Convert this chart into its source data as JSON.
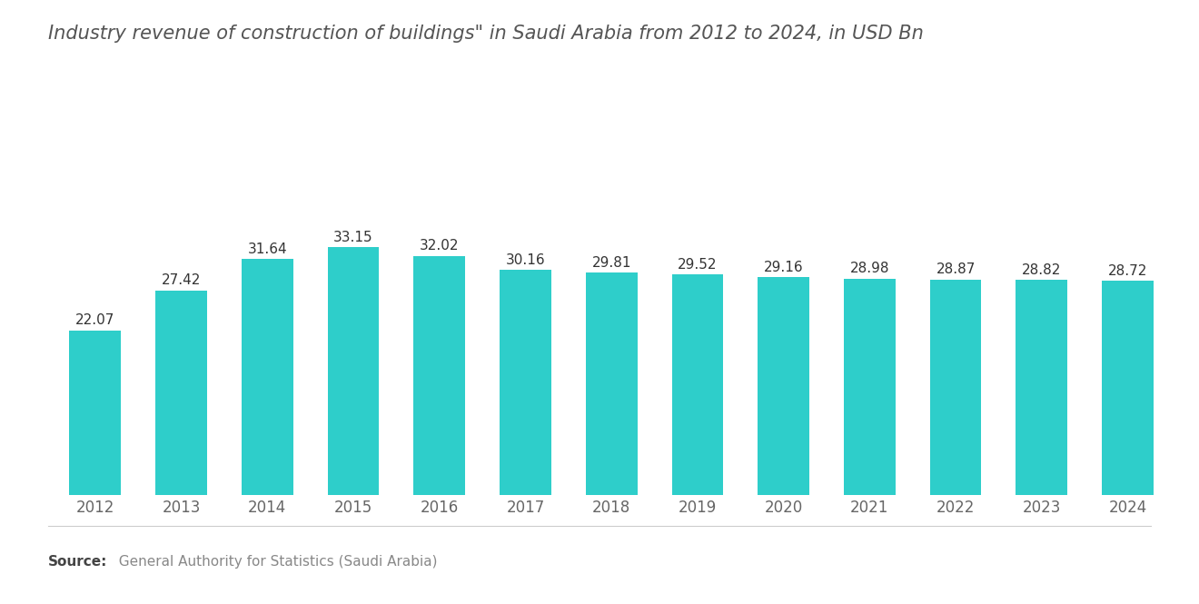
{
  "title": "Industry revenue of construction of buildings\" in Saudi Arabia from 2012 to 2024, in USD Bn",
  "years": [
    2012,
    2013,
    2014,
    2015,
    2016,
    2017,
    2018,
    2019,
    2020,
    2021,
    2022,
    2023,
    2024
  ],
  "values": [
    22.07,
    27.42,
    31.64,
    33.15,
    32.02,
    30.16,
    29.81,
    29.52,
    29.16,
    28.98,
    28.87,
    28.82,
    28.72
  ],
  "bar_color": "#2ECECA",
  "title_color": "#555555",
  "label_color": "#333333",
  "tick_color": "#666666",
  "background_color": "#ffffff",
  "source_bold": "Source:",
  "source_text": "  General Authority for Statistics (Saudi Arabia)",
  "source_color": "#888888",
  "source_bold_color": "#444444",
  "title_fontsize": 15,
  "label_fontsize": 11,
  "tick_fontsize": 12,
  "source_fontsize": 11,
  "ylim": [
    0,
    42
  ]
}
